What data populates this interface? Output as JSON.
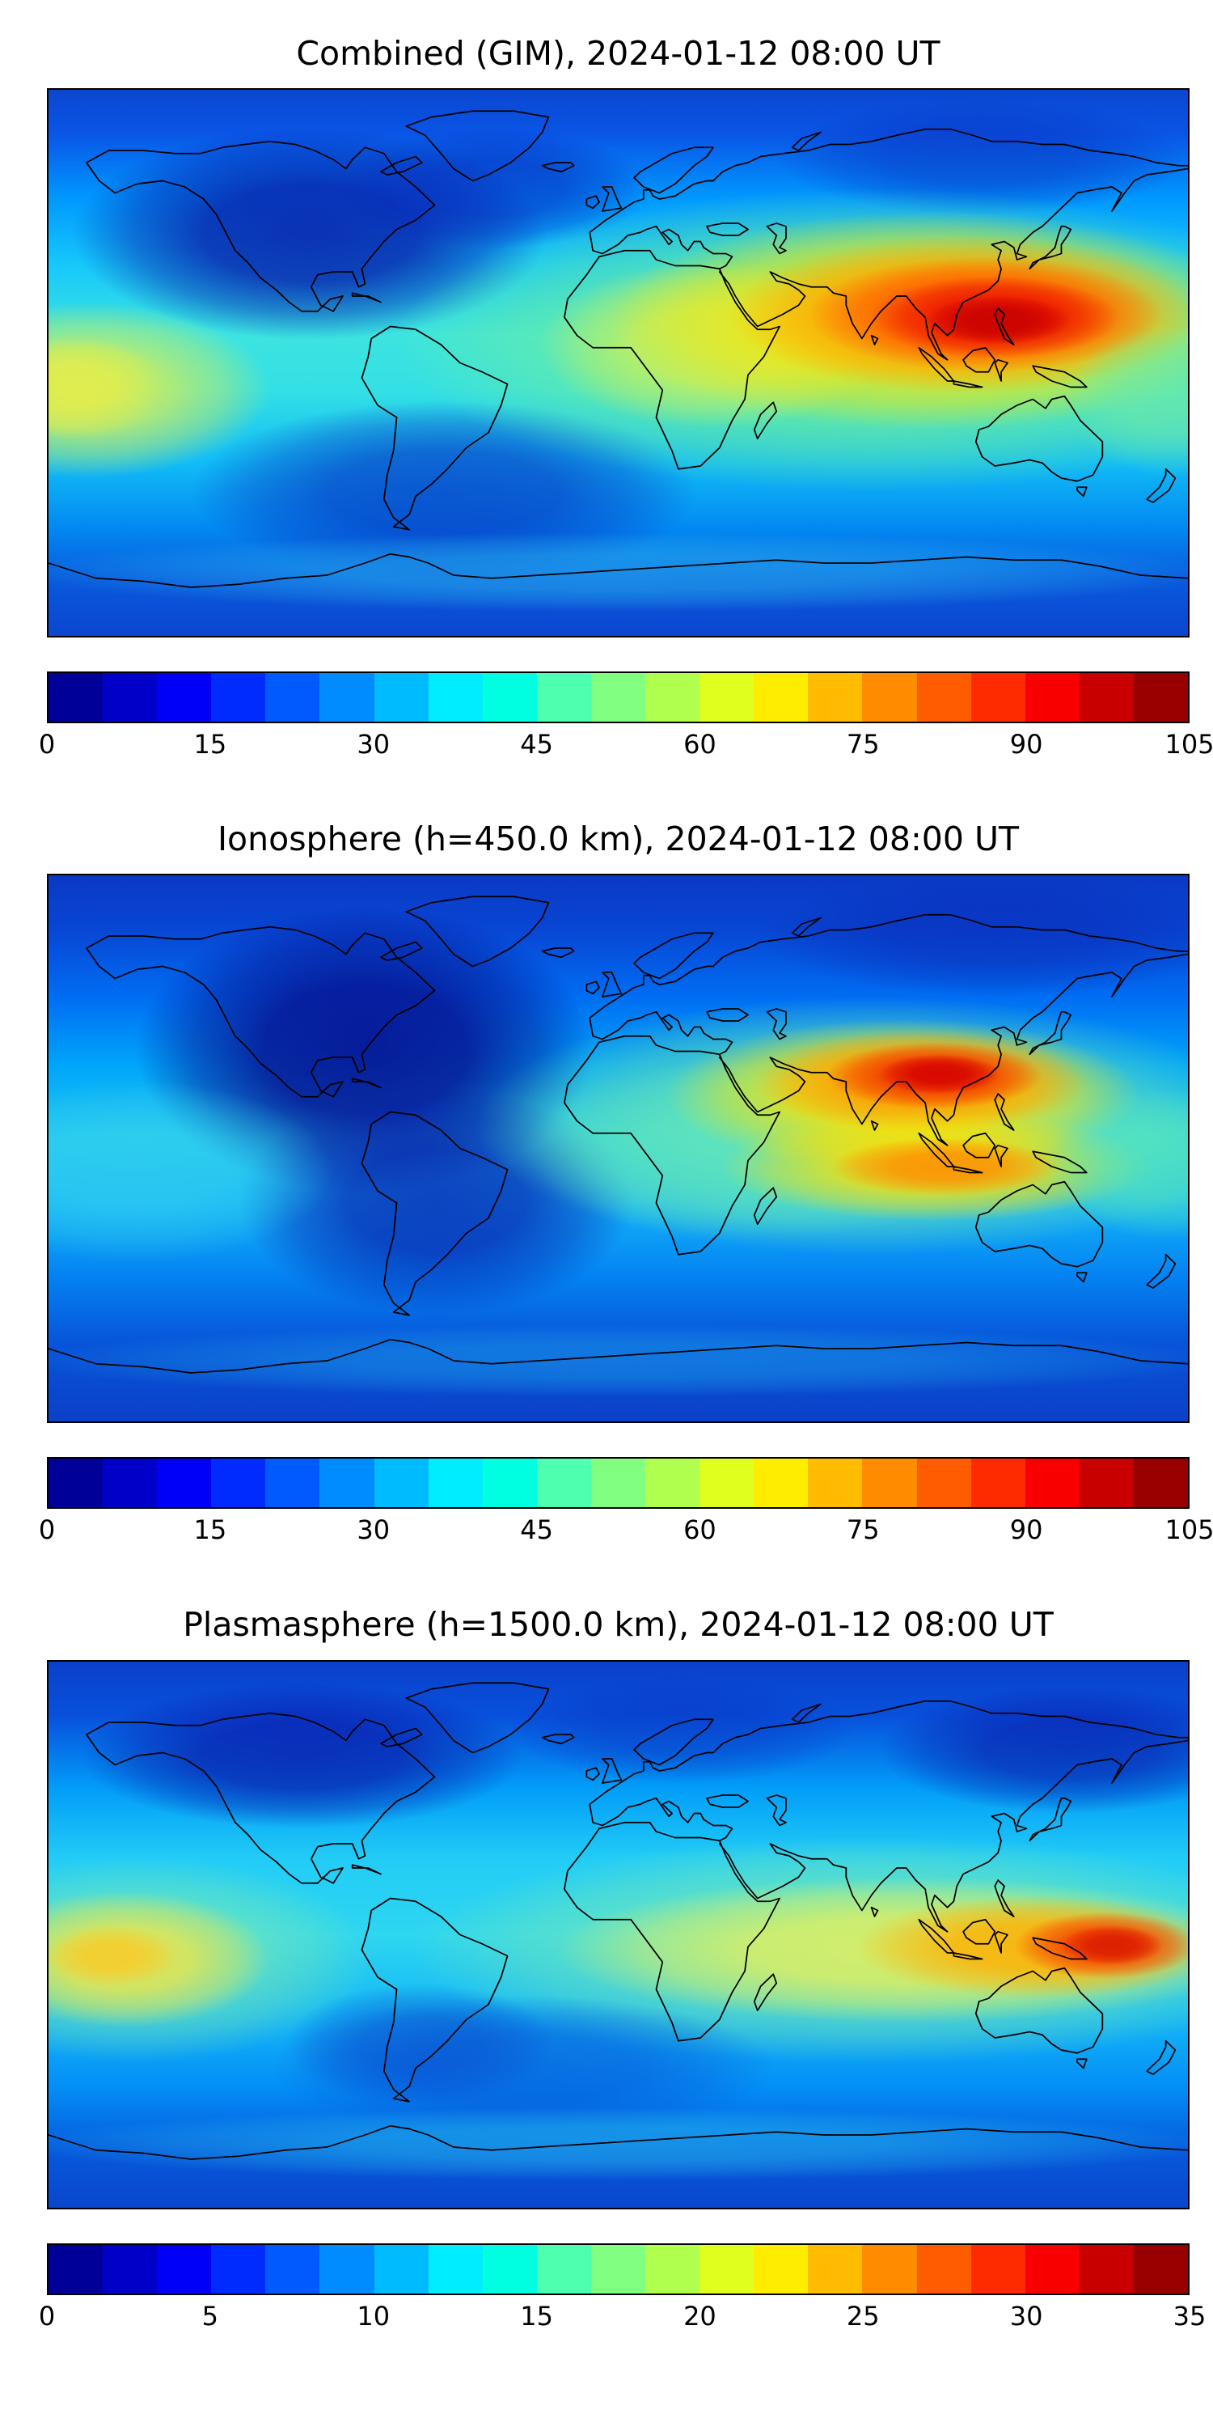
{
  "figure": {
    "background": "#ffffff",
    "text_color": "#000000",
    "frame_color": "#000000"
  },
  "panels": [
    {
      "id": "combined",
      "title": "Combined (GIM), 2024-01-12 08:00 UT",
      "value_range": [
        0,
        105
      ],
      "colorbar_ticks": [
        "0",
        "15",
        "30",
        "45",
        "60",
        "75",
        "90",
        "105"
      ]
    },
    {
      "id": "ionosphere",
      "title": "Ionosphere  (h=450.0 km), 2024-01-12 08:00 UT",
      "value_range": [
        0,
        105
      ],
      "colorbar_ticks": [
        "0",
        "15",
        "30",
        "45",
        "60",
        "75",
        "90",
        "105"
      ]
    },
    {
      "id": "plasmasphere",
      "title": "Plasmasphere (h=1500.0 km), 2024-01-12 08:00 UT",
      "value_range": [
        0,
        35
      ],
      "colorbar_ticks": [
        "0",
        "5",
        "10",
        "15",
        "20",
        "25",
        "30",
        "35"
      ]
    }
  ],
  "colorbar_palette": [
    "#000098",
    "#0000C8",
    "#0000F9",
    "#002BFF",
    "#005BFF",
    "#008CFF",
    "#00BCFF",
    "#00EDFF",
    "#00FFE1",
    "#4FFFB0",
    "#80FF80",
    "#B0FF4F",
    "#E1FF1E",
    "#FFED00",
    "#FFBC00",
    "#FF8C00",
    "#FF5B00",
    "#FF2B00",
    "#F90000",
    "#C80000",
    "#980000"
  ],
  "chart_data": [
    {
      "type": "heatmap",
      "variant": "filled-contour world map, jet colormap, discrete bands",
      "title": "Combined (GIM), 2024-01-12 08:00 UT",
      "x_axis": "longitude (deg, -180 to 180, unlabeled)",
      "y_axis": "latitude (deg, -90 to 90, unlabeled)",
      "value_units": "TECU (total electron content)",
      "value_range": [
        0,
        105
      ],
      "contour_interval": 5,
      "colorbar_ticks": [
        0,
        15,
        30,
        45,
        60,
        75,
        90,
        105
      ],
      "colorbar_orientation": "horizontal below map",
      "grid": false,
      "overlay": "black coastlines",
      "features": [
        {
          "feature": "primary maximum",
          "lon": 105,
          "lat": 13,
          "value": 100,
          "note": "dark-red crest over Southeast Asia / South China Sea"
        },
        {
          "feature": "equatorial high plateau",
          "lon_range": [
            60,
            150
          ],
          "lat_range": [
            0,
            30
          ],
          "value": "70-95"
        },
        {
          "feature": "African enhancement",
          "lon": 25,
          "lat": 5,
          "value": 65
        },
        {
          "feature": "west-Pacific enhancement at left map edge",
          "lon": -172,
          "lat": -8,
          "value": 60
        },
        {
          "feature": "night-side minimum",
          "lon": -95,
          "lat": 45,
          "value": 5,
          "note": "dark blue over North America and north Atlantic"
        },
        {
          "feature": "southern mid-latitude low",
          "lon": -45,
          "lat": -45,
          "value": 12
        },
        {
          "feature": "Antarctic band",
          "lat": -65,
          "value": "20-30"
        }
      ]
    },
    {
      "type": "heatmap",
      "variant": "filled-contour world map, jet colormap, discrete bands",
      "title": "Ionosphere  (h=450.0 km), 2024-01-12 08:00 UT",
      "x_axis": "longitude (deg, -180 to 180, unlabeled)",
      "y_axis": "latitude (deg, -90 to 90, unlabeled)",
      "value_units": "TECU (total electron content)",
      "value_range": [
        0,
        105
      ],
      "contour_interval": 5,
      "colorbar_ticks": [
        0,
        15,
        30,
        45,
        60,
        75,
        90,
        105
      ],
      "colorbar_orientation": "horizontal below map",
      "grid": false,
      "overlay": "black coastlines",
      "features": [
        {
          "feature": "primary maximum",
          "lon": 85,
          "lat": 22,
          "value": 88,
          "note": "red-orange crest over northern India / Bay of Bengal"
        },
        {
          "feature": "secondary equatorial crest",
          "lon": 100,
          "lat": -6,
          "value": 72,
          "note": "orange band just south of the equator"
        },
        {
          "feature": "Africa / Indian-ocean plateau",
          "lon_range": [
            30,
            130
          ],
          "lat_range": [
            -20,
            30
          ],
          "value": "45-70"
        },
        {
          "feature": "night-side minimum",
          "lon": -85,
          "lat": 25,
          "value": 3,
          "note": "large dark-blue region covering the Americas"
        },
        {
          "feature": "Antarctic band",
          "lat": -65,
          "value": "15-25"
        }
      ]
    },
    {
      "type": "heatmap",
      "variant": "filled-contour world map, jet colormap, discrete bands",
      "title": "Plasmasphere (h=1500.0 km), 2024-01-12 08:00 UT",
      "x_axis": "longitude (deg, -180 to 180, unlabeled)",
      "y_axis": "latitude (deg, -90 to 90, unlabeled)",
      "value_units": "TECU (total electron content)",
      "value_range": [
        0,
        35
      ],
      "contour_interval": 1.75,
      "colorbar_ticks": [
        0,
        5,
        10,
        15,
        20,
        25,
        30,
        35
      ],
      "colorbar_orientation": "horizontal below map",
      "grid": false,
      "overlay": "black coastlines",
      "features": [
        {
          "feature": "primary maximum",
          "lon": 160,
          "lat": -4,
          "value": 31,
          "note": "red-orange spot east of New Guinea"
        },
        {
          "feature": "equatorial enhancement band",
          "lon_range": [
            40,
            180
          ],
          "lat_range": [
            -15,
            10
          ],
          "value": "20-28"
        },
        {
          "feature": "east-Pacific enhancement at left map edge",
          "lon": -155,
          "lat": -7,
          "value": 24
        },
        {
          "feature": "high-latitude minima",
          "lon": -100,
          "lat": 60,
          "value": 4,
          "note": "dark blue over northern North America and northeast Asia"
        },
        {
          "feature": "southern mid-latitude low",
          "lon": -30,
          "lat": -45,
          "value": 8
        },
        {
          "feature": "mid-latitude background",
          "value": "10-16"
        }
      ]
    }
  ]
}
